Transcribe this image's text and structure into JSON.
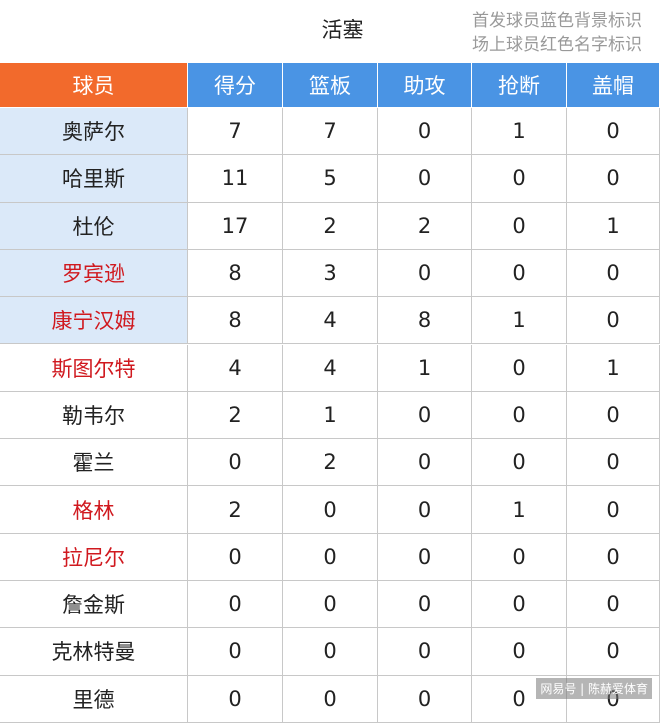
{
  "header": {
    "title": "活塞",
    "notes": [
      "首发球员蓝色背景标识",
      "场上球员红色名字标识"
    ]
  },
  "table": {
    "columns": [
      "球员",
      "得分",
      "篮板",
      "助攻",
      "抢断",
      "盖帽"
    ],
    "rows": [
      {
        "name": "奥萨尔",
        "starter": true,
        "on_court": false,
        "stats": [
          7,
          7,
          0,
          1,
          0
        ]
      },
      {
        "name": "哈里斯",
        "starter": true,
        "on_court": false,
        "stats": [
          11,
          5,
          0,
          0,
          0
        ]
      },
      {
        "name": "杜伦",
        "starter": true,
        "on_court": false,
        "stats": [
          17,
          2,
          2,
          0,
          1
        ]
      },
      {
        "name": "罗宾逊",
        "starter": true,
        "on_court": true,
        "stats": [
          8,
          3,
          0,
          0,
          0
        ]
      },
      {
        "name": "康宁汉姆",
        "starter": true,
        "on_court": true,
        "stats": [
          8,
          4,
          8,
          1,
          0
        ]
      },
      {
        "name": "斯图尔特",
        "starter": false,
        "on_court": true,
        "stats": [
          4,
          4,
          1,
          0,
          1
        ]
      },
      {
        "name": "勒韦尔",
        "starter": false,
        "on_court": false,
        "stats": [
          2,
          1,
          0,
          0,
          0
        ]
      },
      {
        "name": "霍兰",
        "starter": false,
        "on_court": false,
        "stats": [
          0,
          2,
          0,
          0,
          0
        ]
      },
      {
        "name": "格林",
        "starter": false,
        "on_court": true,
        "stats": [
          2,
          0,
          0,
          1,
          0
        ]
      },
      {
        "name": "拉尼尔",
        "starter": false,
        "on_court": true,
        "stats": [
          0,
          0,
          0,
          0,
          0
        ]
      },
      {
        "name": "詹金斯",
        "starter": false,
        "on_court": false,
        "stats": [
          0,
          0,
          0,
          0,
          0
        ]
      },
      {
        "name": "克林特曼",
        "starter": false,
        "on_court": false,
        "stats": [
          0,
          0,
          0,
          0,
          0
        ]
      },
      {
        "name": "里德",
        "starter": false,
        "on_court": false,
        "stats": [
          0,
          0,
          0,
          0,
          0
        ]
      }
    ]
  },
  "watermark": "网易号 | 陈赫爱体育"
}
